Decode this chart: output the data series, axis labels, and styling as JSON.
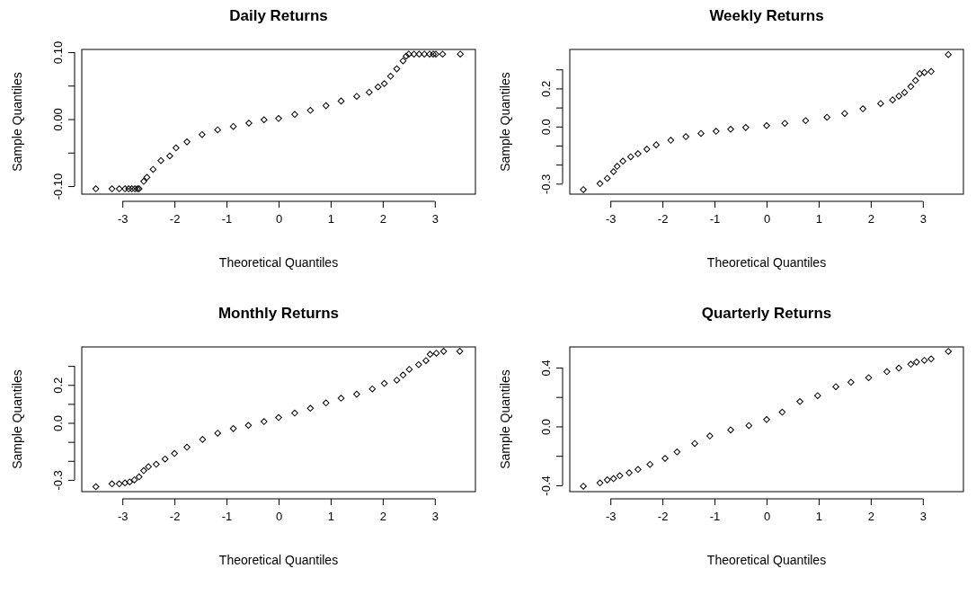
{
  "chart_data": [
    {
      "type": "scatter",
      "title": "Daily Returns",
      "xlabel": "Theoretical Quantiles",
      "ylabel": "Sample Quantiles",
      "xlim": [
        -3.78,
        3.78
      ],
      "ylim": [
        -0.112,
        0.104
      ],
      "xticks": [
        -3,
        -2,
        -1,
        0,
        1,
        2,
        3
      ],
      "yticks": [
        {
          "value": -0.1,
          "label": "-0.10"
        },
        {
          "value": -0.05,
          "label": null
        },
        {
          "value": 0,
          "label": "0.00"
        },
        {
          "value": 0.05,
          "label": null
        },
        {
          "value": 0.1,
          "label": "0.10"
        }
      ],
      "marker": "diamond",
      "grid": false,
      "series": [
        {
          "color": "#000000",
          "x": [
            -3.51,
            -3.2,
            -3.06,
            -2.95,
            -2.88,
            -2.82,
            -2.76,
            -2.71,
            -2.68,
            -2.59,
            -2.53,
            -2.41,
            -2.26,
            -2.09,
            -1.97,
            -1.76,
            -1.47,
            -1.17,
            -0.87,
            -0.57,
            -0.28,
            0,
            0.31,
            0.61,
            0.91,
            1.2,
            1.5,
            1.74,
            1.91,
            2.03,
            2.15,
            2.27,
            2.39,
            2.45,
            2.5,
            2.6,
            2.7,
            2.8,
            2.9,
            2.97,
            3.02,
            3.15,
            3.49
          ],
          "values": [
            -0.104,
            -0.104,
            -0.104,
            -0.104,
            -0.104,
            -0.104,
            -0.104,
            -0.104,
            -0.104,
            -0.093,
            -0.087,
            -0.075,
            -0.062,
            -0.055,
            -0.043,
            -0.034,
            -0.023,
            -0.016,
            -0.011,
            -0.006,
            -0.001,
            0.001,
            0.007,
            0.013,
            0.02,
            0.027,
            0.034,
            0.04,
            0.048,
            0.053,
            0.064,
            0.075,
            0.087,
            0.094,
            0.097,
            0.097,
            0.097,
            0.097,
            0.097,
            0.097,
            0.097,
            0.097,
            0.097
          ]
        }
      ]
    },
    {
      "type": "scatter",
      "title": "Weekly Returns",
      "xlabel": "Theoretical Quantiles",
      "ylabel": "Sample Quantiles",
      "xlim": [
        -3.78,
        3.78
      ],
      "ylim": [
        -0.355,
        0.405
      ],
      "xticks": [
        -3,
        -2,
        -1,
        0,
        1,
        2,
        3
      ],
      "yticks": [
        {
          "value": -0.3,
          "label": "-0.3"
        },
        {
          "value": -0.2,
          "label": null
        },
        {
          "value": -0.1,
          "label": null
        },
        {
          "value": 0,
          "label": "0.0"
        },
        {
          "value": 0.1,
          "label": null
        },
        {
          "value": 0.2,
          "label": "0.2"
        },
        {
          "value": 0.3,
          "label": null
        }
      ],
      "marker": "diamond",
      "grid": false,
      "series": [
        {
          "color": "#000000",
          "x": [
            -3.52,
            -3.2,
            -3.06,
            -2.94,
            -2.87,
            -2.76,
            -2.61,
            -2.47,
            -2.3,
            -2.12,
            -1.84,
            -1.55,
            -1.26,
            -0.97,
            -0.69,
            -0.4,
            0,
            0.35,
            0.75,
            1.16,
            1.5,
            1.85,
            2.19,
            2.42,
            2.54,
            2.65,
            2.77,
            2.86,
            2.94,
            3.03,
            3.16,
            3.49
          ],
          "values": [
            -0.331,
            -0.3,
            -0.272,
            -0.237,
            -0.209,
            -0.182,
            -0.159,
            -0.143,
            -0.119,
            -0.096,
            -0.072,
            -0.053,
            -0.036,
            -0.025,
            -0.014,
            -0.005,
            0.005,
            0.017,
            0.031,
            0.049,
            0.069,
            0.093,
            0.121,
            0.14,
            0.16,
            0.179,
            0.21,
            0.242,
            0.278,
            0.284,
            0.289,
            0.378
          ]
        }
      ]
    },
    {
      "type": "scatter",
      "title": "Monthly Returns",
      "xlabel": "Theoretical Quantiles",
      "ylabel": "Sample Quantiles",
      "xlim": [
        -3.78,
        3.78
      ],
      "ylim": [
        -0.362,
        0.4
      ],
      "xticks": [
        -3,
        -2,
        -1,
        0,
        1,
        2,
        3
      ],
      "yticks": [
        {
          "value": -0.3,
          "label": "-0.3"
        },
        {
          "value": -0.2,
          "label": null
        },
        {
          "value": -0.1,
          "label": null
        },
        {
          "value": 0,
          "label": "0.0"
        },
        {
          "value": 0.1,
          "label": null
        },
        {
          "value": 0.2,
          "label": "0.2"
        },
        {
          "value": 0.3,
          "label": null
        }
      ],
      "marker": "diamond",
      "grid": false,
      "series": [
        {
          "color": "#000000",
          "x": [
            -3.51,
            -3.2,
            -3.06,
            -2.95,
            -2.86,
            -2.77,
            -2.68,
            -2.59,
            -2.5,
            -2.35,
            -2.18,
            -2.0,
            -1.76,
            -1.46,
            -1.17,
            -0.87,
            -0.58,
            -0.28,
            0,
            0.31,
            0.61,
            0.91,
            1.2,
            1.5,
            1.8,
            2.03,
            2.27,
            2.39,
            2.51,
            2.69,
            2.83,
            2.91,
            3.03,
            3.17,
            3.48
          ],
          "values": [
            -0.336,
            -0.321,
            -0.321,
            -0.316,
            -0.311,
            -0.3,
            -0.284,
            -0.251,
            -0.231,
            -0.218,
            -0.19,
            -0.161,
            -0.128,
            -0.087,
            -0.054,
            -0.03,
            -0.013,
            0.007,
            0.028,
            0.052,
            0.077,
            0.105,
            0.13,
            0.151,
            0.179,
            0.208,
            0.225,
            0.252,
            0.282,
            0.307,
            0.328,
            0.361,
            0.367,
            0.377,
            0.377
          ]
        }
      ]
    },
    {
      "type": "scatter",
      "title": "Quarterly Returns",
      "xlabel": "Theoretical Quantiles",
      "ylabel": "Sample Quantiles",
      "xlim": [
        -3.78,
        3.78
      ],
      "ylim": [
        -0.443,
        0.54
      ],
      "xticks": [
        -3,
        -2,
        -1,
        0,
        1,
        2,
        3
      ],
      "yticks": [
        {
          "value": -0.4,
          "label": "-0.4"
        },
        {
          "value": -0.2,
          "label": null
        },
        {
          "value": 0,
          "label": "0.0"
        },
        {
          "value": 0.2,
          "label": null
        },
        {
          "value": 0.4,
          "label": "0.4"
        }
      ],
      "marker": "diamond",
      "grid": false,
      "series": [
        {
          "color": "#000000",
          "x": [
            -3.52,
            -3.2,
            -3.06,
            -2.94,
            -2.82,
            -2.64,
            -2.47,
            -2.24,
            -1.95,
            -1.72,
            -1.38,
            -1.09,
            -0.69,
            -0.34,
            0,
            0.3,
            0.64,
            0.98,
            1.33,
            1.62,
            1.96,
            2.31,
            2.54,
            2.77,
            2.88,
            3.03,
            3.16,
            3.49
          ],
          "values": [
            -0.406,
            -0.384,
            -0.363,
            -0.355,
            -0.335,
            -0.315,
            -0.292,
            -0.258,
            -0.217,
            -0.173,
            -0.116,
            -0.065,
            -0.024,
            0.006,
            0.047,
            0.097,
            0.169,
            0.209,
            0.27,
            0.3,
            0.331,
            0.372,
            0.396,
            0.422,
            0.437,
            0.449,
            0.459,
            0.51
          ]
        }
      ]
    }
  ]
}
